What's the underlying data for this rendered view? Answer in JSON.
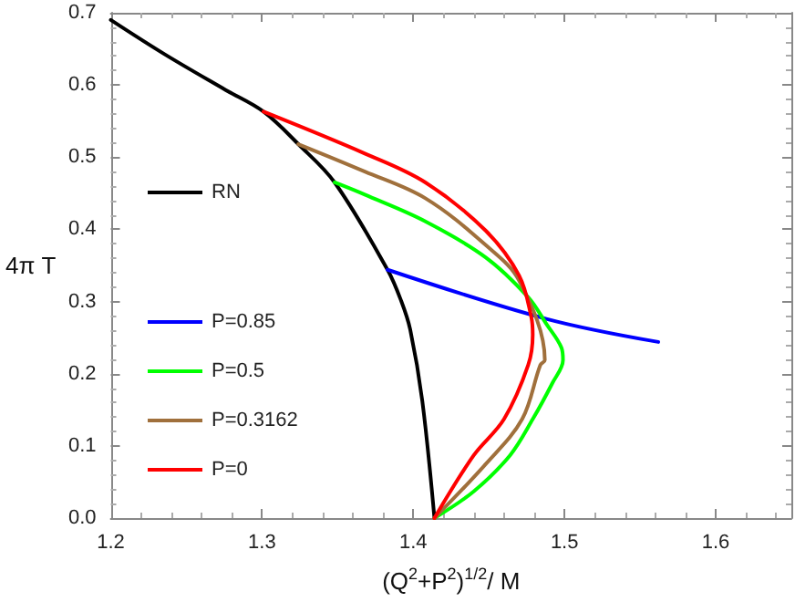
{
  "chart_data": {
    "type": "line",
    "xlabel": "(Q$^{2}$+P$^{2}$)$^{1/2}$/ M",
    "ylabel": "4π T",
    "xlim": [
      1.2,
      1.65
    ],
    "xticks": [
      1.2,
      1.3,
      1.4,
      1.5,
      1.6
    ],
    "ylim": [
      0,
      0.7
    ],
    "yticks": [
      {
        "value": 0,
        "label": "0.0"
      },
      0.1,
      0.2,
      0.3,
      0.4,
      0.5,
      0.6,
      0.7
    ],
    "grid": false,
    "legend": "left",
    "marker": "none",
    "line_style": "solid",
    "series": [
      {
        "name": "RN",
        "color": "#000000",
        "x": [
          1.2,
          1.236,
          1.276,
          1.301,
          1.324,
          1.348,
          1.383,
          1.392,
          1.398,
          1.406,
          1.414
        ],
        "values": [
          0.69,
          0.642,
          0.593,
          0.563,
          0.518,
          0.465,
          0.344,
          0.301,
          0.261,
          0.162,
          0
        ]
      },
      {
        "name": "P=0.85",
        "color": "#0000ff",
        "x": [
          1.383,
          1.488,
          1.562
        ],
        "values": [
          0.344,
          0.276,
          0.244
        ]
      },
      {
        "name": "P=0.5",
        "color": "#00ff00",
        "x": [
          1.348,
          1.368,
          1.408,
          1.448,
          1.476,
          1.488,
          1.498,
          1.499,
          1.492,
          1.479,
          1.464,
          1.44,
          1.414
        ],
        "values": [
          0.465,
          0.448,
          0.411,
          0.361,
          0.306,
          0.269,
          0.236,
          0.219,
          0.187,
          0.137,
          0.087,
          0.037,
          0
        ]
      },
      {
        "name": "P=0.3162",
        "color": "#a0703c",
        "x": [
          1.324,
          1.368,
          1.408,
          1.448,
          1.47,
          1.487,
          1.484,
          1.472,
          1.448,
          1.414
        ],
        "values": [
          0.518,
          0.48,
          0.443,
          0.378,
          0.329,
          0.219,
          0.212,
          0.137,
          0.075,
          0
        ]
      },
      {
        "name": "P=0",
        "color": "#ff0000",
        "x": [
          1.301,
          1.368,
          1.408,
          1.448,
          1.47,
          1.478,
          1.479,
          1.476,
          1.46,
          1.44,
          1.414
        ],
        "values": [
          0.563,
          0.505,
          0.465,
          0.398,
          0.336,
          0.279,
          0.254,
          0.212,
          0.137,
          0.087,
          0
        ]
      }
    ]
  }
}
